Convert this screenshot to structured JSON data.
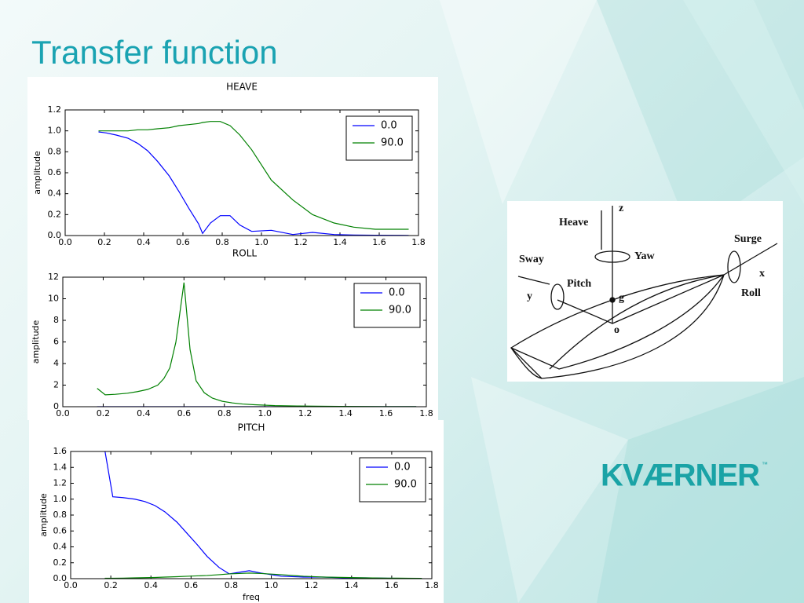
{
  "slide_title": "Transfer function",
  "chart_data": [
    {
      "type": "line",
      "title": "HEAVE",
      "ylabel": "amplitude",
      "x": [
        0.17,
        0.21,
        0.26,
        0.32,
        0.37,
        0.42,
        0.47,
        0.53,
        0.58,
        0.63,
        0.68,
        0.7,
        0.74,
        0.79,
        0.84,
        0.89,
        0.95,
        1.05,
        1.16,
        1.26,
        1.37,
        1.47,
        1.58,
        1.68,
        1.75
      ],
      "series": [
        {
          "name": "0.0",
          "color": "#0000ff",
          "values": [
            0.99,
            0.98,
            0.96,
            0.93,
            0.88,
            0.81,
            0.71,
            0.57,
            0.42,
            0.26,
            0.11,
            0.02,
            0.12,
            0.19,
            0.19,
            0.1,
            0.04,
            0.05,
            0.01,
            0.03,
            0.01,
            0.005,
            0.003,
            0.002,
            0.001
          ]
        },
        {
          "name": "90.0",
          "color": "#008000",
          "values": [
            1.0,
            1.0,
            1.0,
            1.0,
            1.01,
            1.01,
            1.02,
            1.03,
            1.05,
            1.06,
            1.07,
            1.08,
            1.09,
            1.09,
            1.05,
            0.96,
            0.82,
            0.53,
            0.34,
            0.2,
            0.12,
            0.08,
            0.06,
            0.06,
            0.06
          ]
        }
      ],
      "xlim": [
        0,
        1.8
      ],
      "ylim": [
        0,
        1.2
      ],
      "xticks": [
        {
          "value": 0,
          "label": "0.0"
        },
        0.2,
        0.4,
        0.6,
        0.8,
        {
          "value": 1,
          "label": "1.0"
        },
        1.2,
        1.4,
        1.6,
        1.8
      ],
      "yticks": [
        {
          "value": 0,
          "label": "0.0"
        },
        0.2,
        0.4,
        0.6,
        0.8,
        {
          "value": 1,
          "label": "1.0"
        },
        1.2
      ],
      "legend": "upper right"
    },
    {
      "type": "line",
      "title": "ROLL",
      "ylabel": "amplitude",
      "x": [
        0.17,
        0.21,
        0.26,
        0.32,
        0.37,
        0.42,
        0.47,
        0.5,
        0.53,
        0.56,
        0.6,
        0.63,
        0.66,
        0.7,
        0.74,
        0.79,
        0.84,
        0.89,
        0.95,
        1.05,
        1.16,
        1.26,
        1.37,
        1.47,
        1.58,
        1.68,
        1.75
      ],
      "series": [
        {
          "name": "0.0",
          "color": "#0000ff",
          "values": [
            0,
            0,
            0,
            0,
            0,
            0,
            0,
            0,
            0,
            0,
            0,
            0,
            0,
            0,
            0,
            0,
            0,
            0,
            0,
            0,
            0,
            0,
            0,
            0,
            0,
            0,
            0
          ]
        },
        {
          "name": "90.0",
          "color": "#008000",
          "values": [
            1.7,
            1.1,
            1.15,
            1.25,
            1.4,
            1.6,
            2.0,
            2.6,
            3.6,
            6.0,
            11.5,
            5.3,
            2.4,
            1.3,
            0.8,
            0.5,
            0.35,
            0.25,
            0.18,
            0.1,
            0.07,
            0.05,
            0.03,
            0.02,
            0.01,
            0.01,
            0.01
          ]
        }
      ],
      "xlim": [
        0,
        1.8
      ],
      "ylim": [
        0,
        12
      ],
      "xticks": [
        {
          "value": 0,
          "label": "0.0"
        },
        0.2,
        0.4,
        0.6,
        0.8,
        {
          "value": 1,
          "label": "1.0"
        },
        1.2,
        1.4,
        1.6,
        1.8
      ],
      "yticks": [
        0,
        2,
        4,
        6,
        8,
        10,
        12
      ],
      "legend": "upper right"
    },
    {
      "type": "line",
      "title": "PITCH",
      "ylabel": "amplitude",
      "xlabel": "freq",
      "x": [
        0.17,
        0.21,
        0.26,
        0.32,
        0.37,
        0.42,
        0.47,
        0.53,
        0.58,
        0.63,
        0.68,
        0.74,
        0.79,
        0.84,
        0.89,
        0.95,
        1.05,
        1.16,
        1.26,
        1.37,
        1.47,
        1.58,
        1.68,
        1.75
      ],
      "series": [
        {
          "name": "0.0",
          "color": "#0000ff",
          "values": [
            1.62,
            1.03,
            1.02,
            1.0,
            0.97,
            0.92,
            0.84,
            0.71,
            0.57,
            0.43,
            0.28,
            0.14,
            0.06,
            0.08,
            0.1,
            0.07,
            0.03,
            0.02,
            0.02,
            0.01,
            0.01,
            0.005,
            0.003,
            0.002
          ]
        },
        {
          "name": "90.0",
          "color": "#008000",
          "values": [
            0.005,
            0.005,
            0.007,
            0.01,
            0.012,
            0.015,
            0.02,
            0.025,
            0.03,
            0.035,
            0.04,
            0.05,
            0.06,
            0.065,
            0.07,
            0.065,
            0.05,
            0.03,
            0.02,
            0.015,
            0.01,
            0.007,
            0.005,
            0.004
          ]
        }
      ],
      "xlim": [
        0,
        1.8
      ],
      "ylim": [
        0,
        1.6
      ],
      "xticks": [
        {
          "value": 0,
          "label": "0.0"
        },
        0.2,
        0.4,
        0.6,
        0.8,
        {
          "value": 1,
          "label": "1.0"
        },
        1.2,
        1.4,
        1.6,
        1.8
      ],
      "yticks": [
        {
          "value": 0,
          "label": "0.0"
        },
        0.2,
        0.4,
        0.6,
        0.8,
        {
          "value": 1,
          "label": "1.0"
        },
        1.2,
        1.4,
        1.6
      ],
      "legend": "upper right"
    }
  ],
  "diagram": {
    "labels": [
      "Heave",
      "z",
      "Yaw",
      "Sway",
      "Pitch",
      "y",
      "g",
      "o",
      "Surge",
      "x",
      "Roll"
    ]
  },
  "logo": {
    "text": "KVÆRNER",
    "mark": "™"
  }
}
